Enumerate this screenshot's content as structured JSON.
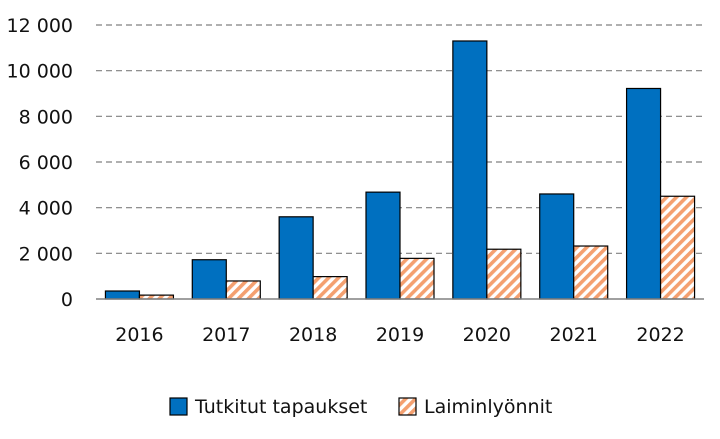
{
  "chart_data": {
    "type": "bar",
    "categories": [
      "2016",
      "2017",
      "2018",
      "2019",
      "2020",
      "2021",
      "2022"
    ],
    "series": [
      {
        "name": "Tutkitut tapaukset",
        "values": [
          350,
          1720,
          3600,
          4680,
          11300,
          4600,
          9220
        ]
      },
      {
        "name": "Laiminlyönnit",
        "values": [
          170,
          790,
          980,
          1780,
          2180,
          2320,
          4500
        ]
      }
    ],
    "ylim": [
      0,
      12000
    ],
    "yticks": [
      {
        "value": 0,
        "label": "0"
      },
      {
        "value": 2000,
        "label": "2 000"
      },
      {
        "value": 4000,
        "label": "4 000"
      },
      {
        "value": 6000,
        "label": "6 000"
      },
      {
        "value": 8000,
        "label": "8 000"
      },
      {
        "value": 10000,
        "label": "10 000"
      },
      {
        "value": 12000,
        "label": "12 000"
      }
    ],
    "grid": "horizontal dashed",
    "legend_position": "bottom",
    "colors": {
      "series1": "#0070c0",
      "series2_hatch": "#f4a070",
      "series2_bg": "#ffffff",
      "outline": "#000000",
      "grid": "#808080"
    }
  }
}
